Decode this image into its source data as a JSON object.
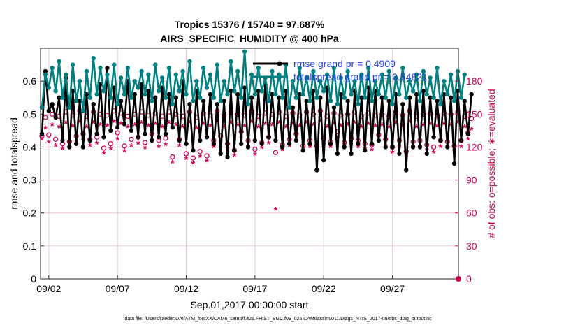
{
  "colors": {
    "rmse": "#000000",
    "spread": "#008080",
    "obs": "#cc0055",
    "legend_text": "#1f3fe0",
    "grid": "#e6c8d6"
  },
  "chart_data": {
    "type": "line",
    "title_line1": "Tropics 15376 / 15740 = 97.687%",
    "title_line2": "AIRS_SPECIFIC_HUMIDITY @ 400 hPa",
    "xlabel": "Sep.01,2017 00:00:00 start",
    "ylabel_left": "rmse and totalspread",
    "ylabel_right": "# of obs: o=possible; ∗=evaluated",
    "footnote": "data file: /Users/raeder/DAI/ATM_forcXX/CAM6_setup/f.e21.FHIST_BGC.f09_025.CAM6assim.011/Diags_NTrS_2017-09/obs_diag_output.nc",
    "xlim": [
      0.4,
      30.8
    ],
    "ylim_left": [
      0,
      0.7
    ],
    "ylim_right": [
      0,
      210
    ],
    "x_ticks": [
      1,
      6,
      11,
      16,
      21,
      26
    ],
    "x_tick_labels": [
      "09/02",
      "09/07",
      "09/12",
      "09/17",
      "09/22",
      "09/27"
    ],
    "y_left_ticks": [
      "0",
      "0.1",
      "0.2",
      "0.3",
      "0.4",
      "0.5",
      "0.6"
    ],
    "y_right_ticks": [
      "0",
      "30",
      "60",
      "90",
      "120",
      "150",
      "180"
    ],
    "x_step_days": 0.25,
    "x_start": 0.5,
    "legend": [
      {
        "name": "rmse grand pr = 0.4909"
      },
      {
        "name": "totalspread grand pr = 0.54821"
      }
    ],
    "series": [
      {
        "name": "rmse",
        "axis": "left",
        "values": [
          0.44,
          0.63,
          0.51,
          0.53,
          0.49,
          0.55,
          0.42,
          0.61,
          0.4,
          0.57,
          0.41,
          0.54,
          0.4,
          0.56,
          0.42,
          0.53,
          0.44,
          0.59,
          0.43,
          0.64,
          0.45,
          0.58,
          0.46,
          0.54,
          0.47,
          0.6,
          0.45,
          0.56,
          0.43,
          0.59,
          0.44,
          0.57,
          0.42,
          0.55,
          0.43,
          0.58,
          0.44,
          0.56,
          0.46,
          0.55,
          0.42,
          0.6,
          0.41,
          0.53,
          0.39,
          0.57,
          0.42,
          0.54,
          0.43,
          0.56,
          0.41,
          0.53,
          0.38,
          0.54,
          0.37,
          0.57,
          0.39,
          0.56,
          0.41,
          0.58,
          0.4,
          0.55,
          0.42,
          0.57,
          0.41,
          0.59,
          0.43,
          0.56,
          0.42,
          0.55,
          0.4,
          0.57,
          0.41,
          0.52,
          0.42,
          0.56,
          0.39,
          0.54,
          0.41,
          0.57,
          0.33,
          0.55,
          0.36,
          0.58,
          0.41,
          0.52,
          0.38,
          0.56,
          0.4,
          0.54,
          0.38,
          0.57,
          0.41,
          0.55,
          0.39,
          0.58,
          0.41,
          0.57,
          0.42,
          0.55,
          0.4,
          0.54,
          0.4,
          0.56,
          0.38,
          0.53,
          0.33,
          0.55,
          0.4,
          0.56,
          0.4,
          0.57,
          0.38,
          0.55,
          0.43,
          0.54,
          0.42,
          0.56,
          0.4,
          0.55,
          0.35,
          0.57,
          0.42,
          0.54,
          0.44,
          0.56
        ]
      },
      {
        "name": "totalspread",
        "axis": "left",
        "values": [
          0.52,
          0.62,
          0.58,
          0.64,
          0.57,
          0.66,
          0.55,
          0.62,
          0.52,
          0.65,
          0.54,
          0.6,
          0.51,
          0.63,
          0.55,
          0.67,
          0.56,
          0.64,
          0.57,
          0.62,
          0.55,
          0.65,
          0.53,
          0.61,
          0.56,
          0.64,
          0.55,
          0.6,
          0.58,
          0.63,
          0.56,
          0.62,
          0.54,
          0.65,
          0.57,
          0.61,
          0.55,
          0.64,
          0.53,
          0.62,
          0.57,
          0.63,
          0.56,
          0.66,
          0.54,
          0.6,
          0.55,
          0.64,
          0.58,
          0.62,
          0.55,
          0.65,
          0.54,
          0.6,
          0.56,
          0.66,
          0.57,
          0.63,
          0.55,
          0.69,
          0.53,
          0.62,
          0.56,
          0.64,
          0.57,
          0.61,
          0.54,
          0.63,
          0.56,
          0.62,
          0.55,
          0.65,
          0.52,
          0.6,
          0.55,
          0.64,
          0.56,
          0.61,
          0.54,
          0.63,
          0.55,
          0.6,
          0.57,
          0.62,
          0.54,
          0.64,
          0.53,
          0.61,
          0.55,
          0.63,
          0.56,
          0.6,
          0.53,
          0.62,
          0.55,
          0.64,
          0.54,
          0.6,
          0.56,
          0.62,
          0.55,
          0.63,
          0.53,
          0.61,
          0.56,
          0.64,
          0.55,
          0.6,
          0.57,
          0.62,
          0.54,
          0.63,
          0.56,
          0.61,
          0.55,
          0.64,
          0.53,
          0.6,
          0.56,
          0.62,
          0.54,
          0.63,
          0.55,
          0.62
        ]
      },
      {
        "name": "obs_possible",
        "axis": "right",
        "values": [
          130,
          147,
          131,
          150,
          127,
          148,
          123,
          152,
          125,
          149,
          130,
          153,
          132,
          148,
          127,
          152,
          129,
          150,
          119,
          149,
          123,
          153,
          133,
          151,
          121,
          148,
          127,
          150,
          129,
          152,
          124,
          149,
          132,
          151,
          126,
          148,
          128,
          152,
          111,
          150,
          127,
          148,
          114,
          152,
          110,
          147,
          116,
          151,
          112,
          149,
          126,
          153,
          130,
          148,
          123,
          152,
          117,
          150,
          134,
          149,
          126,
          153,
          118,
          148,
          124,
          151,
          129,
          150,
          115,
          152,
          122,
          148,
          127,
          151,
          132,
          149,
          121,
          152,
          126,
          150,
          121,
          153,
          128,
          148,
          125,
          151,
          134,
          149,
          124,
          150,
          128,
          152,
          126,
          148,
          123,
          151,
          122,
          149,
          131,
          150,
          127,
          148,
          120,
          152,
          126,
          149,
          116,
          153,
          125,
          148,
          126,
          150,
          122,
          151,
          120,
          149,
          126,
          151,
          125,
          150,
          121,
          152,
          126,
          148,
          133,
          146
        ]
      },
      {
        "name": "obs_evaluated",
        "axis": "right",
        "values": [
          127,
          137,
          124,
          140,
          121,
          138,
          118,
          142,
          120,
          139,
          124,
          143,
          126,
          138,
          121,
          142,
          123,
          140,
          114,
          139,
          118,
          143,
          127,
          141,
          116,
          138,
          121,
          140,
          123,
          142,
          119,
          139,
          126,
          141,
          120,
          138,
          122,
          142,
          106,
          140,
          121,
          138,
          109,
          142,
          105,
          137,
          111,
          141,
          107,
          139,
          120,
          143,
          124,
          138,
          118,
          142,
          112,
          140,
          128,
          139,
          120,
          143,
          113,
          138,
          119,
          141,
          123,
          140,
          63,
          142,
          117,
          138,
          121,
          141,
          126,
          139,
          116,
          142,
          120,
          140,
          116,
          143,
          122,
          138,
          120,
          141,
          128,
          139,
          119,
          140,
          122,
          142,
          120,
          138,
          118,
          141,
          117,
          139,
          125,
          140,
          121,
          138,
          115,
          142,
          120,
          139,
          111,
          143,
          120,
          138,
          120,
          140,
          117,
          141,
          115,
          139,
          120,
          141,
          120,
          140,
          116,
          142,
          120,
          138,
          127,
          136
        ]
      }
    ]
  }
}
